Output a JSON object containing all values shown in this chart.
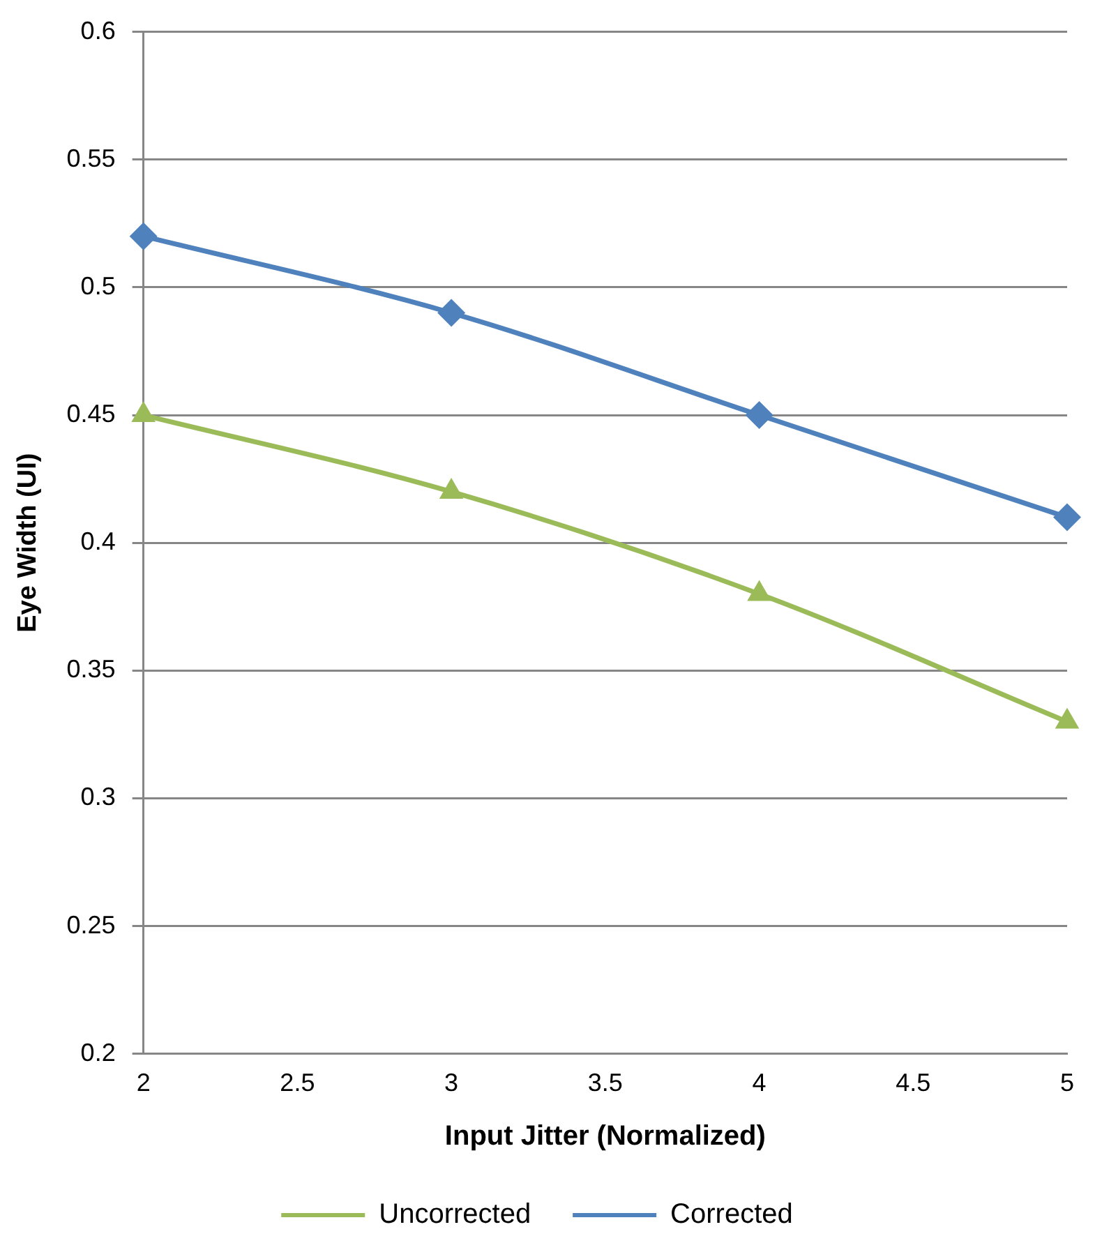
{
  "chart_data": {
    "type": "line",
    "xlabel": "Input Jitter (Normalized)",
    "ylabel": "Eye Width (UI)",
    "x": [
      2,
      3,
      4,
      5
    ],
    "series": [
      {
        "name": "Uncorrected",
        "color": "#9bbb59",
        "marker": "triangle",
        "values": [
          0.45,
          0.42,
          0.38,
          0.33
        ]
      },
      {
        "name": "Corrected",
        "color": "#4f81bd",
        "marker": "diamond",
        "values": [
          0.52,
          0.49,
          0.45,
          0.41
        ]
      }
    ],
    "xlim": [
      2,
      5
    ],
    "xticks": [
      2,
      2.5,
      3,
      3.5,
      4,
      4.5,
      5
    ],
    "ylim": [
      0.2,
      0.6
    ],
    "yticks": [
      0.2,
      0.25,
      0.3,
      0.35,
      0.4,
      0.45,
      0.5,
      0.55,
      0.6
    ],
    "grid": "y",
    "legend": "bottom",
    "line_style": "solid"
  }
}
